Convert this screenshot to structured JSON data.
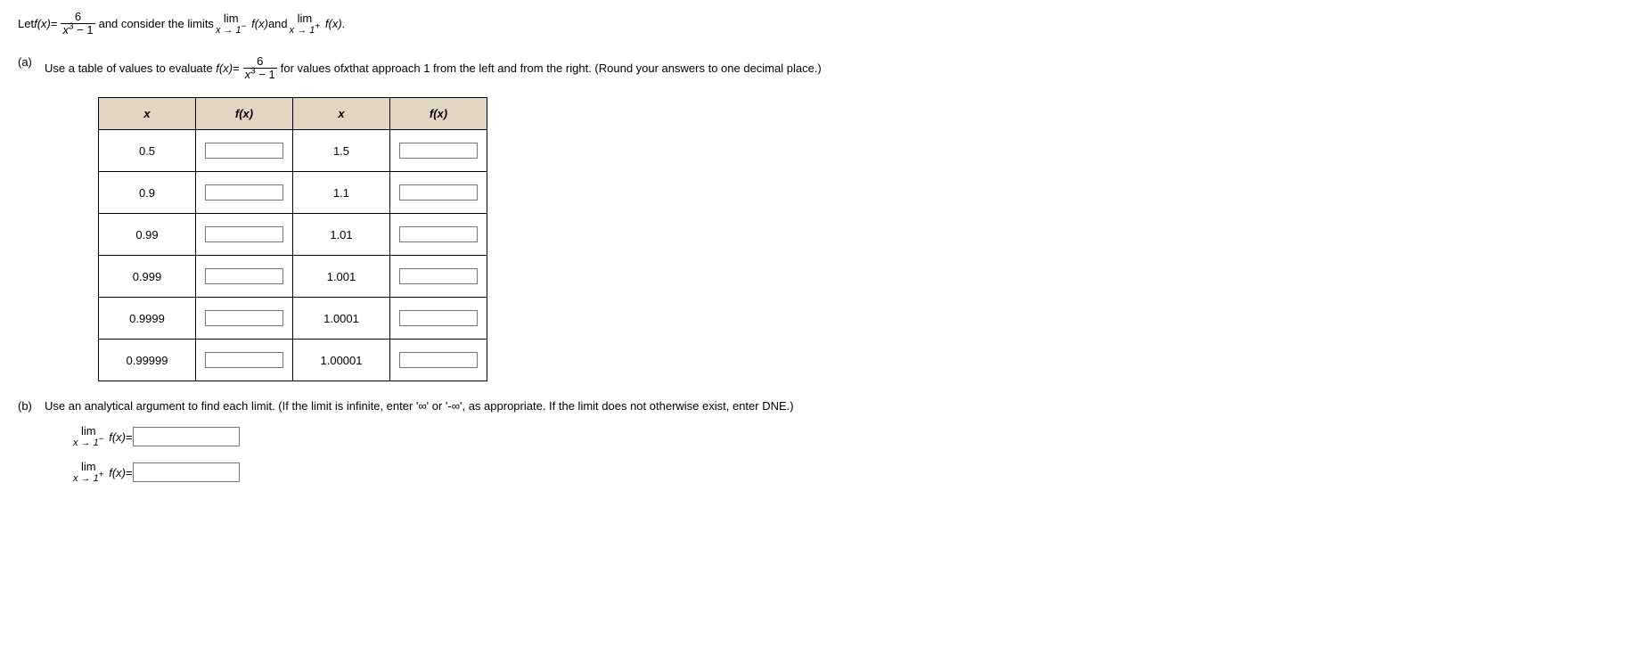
{
  "intro": {
    "let": "Let ",
    "fx": "f",
    "x": "x",
    "eq": " = ",
    "num": "6",
    "den_a": "x",
    "den_exp": "3",
    "den_b": " − 1",
    "consider": " and consider the limits ",
    "lim": "lim",
    "arrow1": "x → 1",
    "minus": "−",
    "plus": "+",
    "and": " and ",
    "period": "."
  },
  "partA": {
    "label": "(a)",
    "text1": "Use a table of values to evaluate ",
    "text2": " for values of ",
    "text3": " that approach 1 from the left and from the right. (Round your answers to one decimal place.)",
    "table": {
      "h_x": "x",
      "h_fx": "f(x)",
      "left": [
        "0.5",
        "0.9",
        "0.99",
        "0.999",
        "0.9999",
        "0.99999"
      ],
      "right": [
        "1.5",
        "1.1",
        "1.01",
        "1.001",
        "1.0001",
        "1.00001"
      ]
    }
  },
  "partB": {
    "label": "(b)",
    "text": "Use an analytical argument to find each limit. (If the limit is infinite, enter '∞' or '-∞', as appropriate. If the limit does not otherwise exist, enter DNE.)"
  },
  "colors": {
    "header_bg": "#e0d6c1",
    "border": "#000000"
  }
}
